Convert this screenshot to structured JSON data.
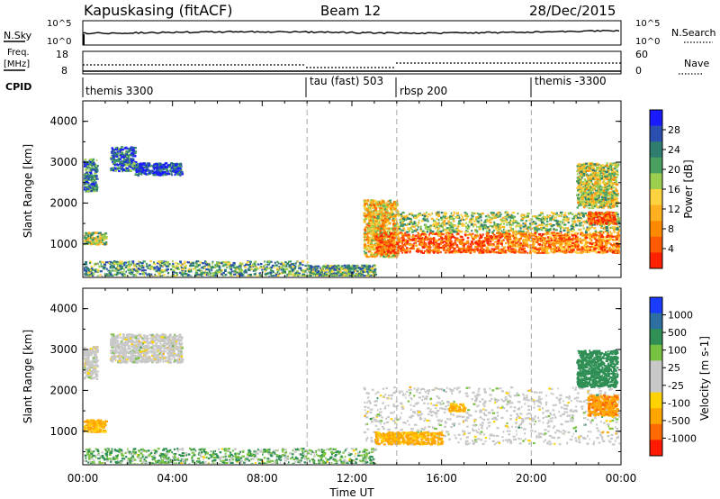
{
  "header": {
    "station": "Kapuskasing (fitACF)",
    "beam": "Beam 12",
    "date": "28/Dec/2015"
  },
  "nsky_panel": {
    "left_label": "N.Sky",
    "left_ticks": [
      "10^5",
      "10^0"
    ],
    "right_ticks": [
      "10^5",
      "10^0"
    ],
    "right_label": "N.Search"
  },
  "freq_panel": {
    "left_label_1": "Freq.",
    "left_label_2": "[MHz]",
    "left_ticks": [
      "18",
      "8"
    ],
    "right_ticks": [
      "60",
      "0"
    ],
    "right_label": "Nave"
  },
  "cpid": {
    "label": "CPID",
    "segments": [
      {
        "name": "themis 3300",
        "start_hour": 0
      },
      {
        "name": "tau (fast) 503",
        "start_hour": 10
      },
      {
        "name": "rbsp 200",
        "start_hour": 14
      },
      {
        "name": "themis -3300",
        "start_hour": 20
      }
    ]
  },
  "chart_data": [
    {
      "type": "heatmap",
      "panel": "power",
      "ylabel": "Slant Range [km]",
      "ylim": [
        180,
        4500
      ],
      "yticks": [
        "1000",
        "2000",
        "3000",
        "4000"
      ],
      "xlim_hours": [
        0,
        24
      ],
      "colorbar": {
        "label": "Power [dB]",
        "ticks": [
          "4",
          "8",
          "12",
          "16",
          "20",
          "24",
          "28"
        ],
        "colors": [
          "#1a1aff",
          "#2a4fb0",
          "#2e7d6e",
          "#4aa060",
          "#9ccf50",
          "#ffd23f",
          "#ffb020",
          "#ff8a00",
          "#ff5a00",
          "#ff2200"
        ]
      },
      "regions": [
        {
          "t0": 0.0,
          "t1": 0.6,
          "r0": 2300,
          "r1": 3100,
          "level": 0.25
        },
        {
          "t0": 1.2,
          "t1": 2.3,
          "r0": 2800,
          "r1": 3400,
          "level": 0.2
        },
        {
          "t0": 2.3,
          "t1": 4.4,
          "r0": 2700,
          "r1": 3000,
          "level": 0.15
        },
        {
          "t0": 0.0,
          "t1": 1.0,
          "r0": 1000,
          "r1": 1300,
          "level": 0.45
        },
        {
          "t0": 0.0,
          "t1": 10.0,
          "r0": 180,
          "r1": 600,
          "level": 0.35
        },
        {
          "t0": 10.0,
          "t1": 13.0,
          "r0": 180,
          "r1": 500,
          "level": 0.35
        },
        {
          "t0": 12.5,
          "t1": 14.0,
          "r0": 700,
          "r1": 2100,
          "level": 0.6
        },
        {
          "t0": 13.0,
          "t1": 19.0,
          "r0": 800,
          "r1": 1300,
          "level": 0.85
        },
        {
          "t0": 14.0,
          "t1": 24.0,
          "r0": 1300,
          "r1": 1800,
          "level": 0.45
        },
        {
          "t0": 19.0,
          "t1": 24.0,
          "r0": 800,
          "r1": 1300,
          "level": 0.75
        },
        {
          "t0": 22.5,
          "t1": 23.7,
          "r0": 1500,
          "r1": 1800,
          "level": 0.9
        },
        {
          "t0": 22.0,
          "t1": 23.8,
          "r0": 1900,
          "r1": 3000,
          "level": 0.5
        }
      ]
    },
    {
      "type": "heatmap",
      "panel": "velocity",
      "ylabel": "Slant Range [km]",
      "ylim": [
        180,
        4500
      ],
      "yticks": [
        "1000",
        "2000",
        "3000",
        "4000"
      ],
      "xlim_hours": [
        0,
        24
      ],
      "xticks": [
        "00:00",
        "04:00",
        "08:00",
        "12:00",
        "16:00",
        "20:00",
        "00:00"
      ],
      "xlabel": "Time UT",
      "colorbar": {
        "label": "Velocity [m s-1]",
        "ticks": [
          "1000",
          "500",
          "100",
          "25",
          "-25",
          "-100",
          "-500",
          "-1000"
        ],
        "colors": [
          "#1a3cff",
          "#2d6fa0",
          "#2f8f55",
          "#77c240",
          "#c8c8c8",
          "#c8c8c8",
          "#ffd200",
          "#ffa500",
          "#ff6a00",
          "#ff1a00"
        ]
      },
      "regions": [
        {
          "t0": 0.0,
          "t1": 0.6,
          "r0": 2300,
          "r1": 3100,
          "value": 0
        },
        {
          "t0": 1.2,
          "t1": 4.4,
          "r0": 2700,
          "r1": 3400,
          "value": 0
        },
        {
          "t0": 0.0,
          "t1": 1.0,
          "r0": 1000,
          "r1": 1300,
          "value": -150
        },
        {
          "t0": 0.0,
          "t1": 13.0,
          "r0": 180,
          "r1": 600,
          "value": 80
        },
        {
          "t0": 12.5,
          "t1": 24.0,
          "r0": 700,
          "r1": 2100,
          "value": 0
        },
        {
          "t0": 13.0,
          "t1": 16.0,
          "r0": 700,
          "r1": 1000,
          "value": -150
        },
        {
          "t0": 16.3,
          "t1": 17.0,
          "r0": 1500,
          "r1": 1700,
          "value": -150
        },
        {
          "t0": 22.5,
          "t1": 23.8,
          "r0": 1400,
          "r1": 1900,
          "value": -450
        },
        {
          "t0": 22.0,
          "t1": 23.8,
          "r0": 2100,
          "r1": 3000,
          "value": 300
        }
      ]
    }
  ]
}
